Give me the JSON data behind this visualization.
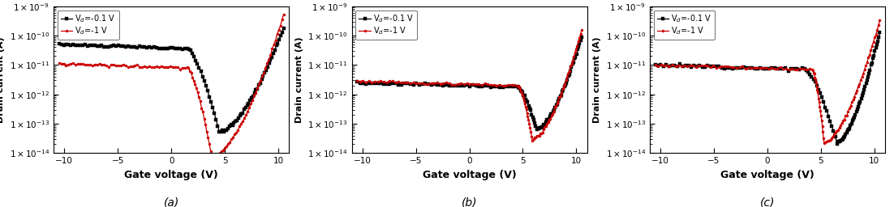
{
  "panels": [
    "(a)",
    "(b)",
    "(c)"
  ],
  "xlabel": "Gate voltage (V)",
  "ylabel": "Drain current (A)",
  "xlim": [
    -11,
    11
  ],
  "ylim_log": [
    -14,
    -9
  ],
  "xticks": [
    -10,
    -5,
    0,
    5,
    10
  ],
  "legend_black": "V$_d$=-0.1 V",
  "legend_red": "V$_d$=-1 V",
  "color_black": "#000000",
  "color_red": "#cc0000",
  "panel_configs": [
    {
      "black_flat_val": -10.3,
      "black_flat_end": 1.5,
      "black_drop_end": 4.5,
      "black_min_val": -13.3,
      "black_rise_end": 10.5,
      "black_rise_val": -9.75,
      "red_flat_val": -10.95,
      "red_flat_end": 1.5,
      "red_drop_end": 3.8,
      "red_min_val": -14.15,
      "red_rise_end": 10.5,
      "red_rise_val": -9.3
    },
    {
      "black_flat_val": -11.6,
      "black_flat_end": 4.5,
      "black_drop_end": 6.3,
      "black_min_val": -13.2,
      "black_rise_end": 10.5,
      "black_rise_val": -10.05,
      "red_flat_val": -11.55,
      "red_flat_end": 4.5,
      "red_drop_end": 5.9,
      "red_min_val": -13.55,
      "red_rise_end": 10.5,
      "red_rise_val": -9.8
    },
    {
      "black_flat_val": -11.0,
      "black_flat_end": 3.5,
      "black_drop_end": 6.5,
      "black_min_val": -13.65,
      "black_rise_end": 10.5,
      "black_rise_val": -9.9,
      "red_flat_val": -11.0,
      "red_flat_end": 4.2,
      "red_drop_end": 5.3,
      "red_min_val": -13.65,
      "red_rise_end": 10.5,
      "red_rise_val": -9.5
    }
  ]
}
